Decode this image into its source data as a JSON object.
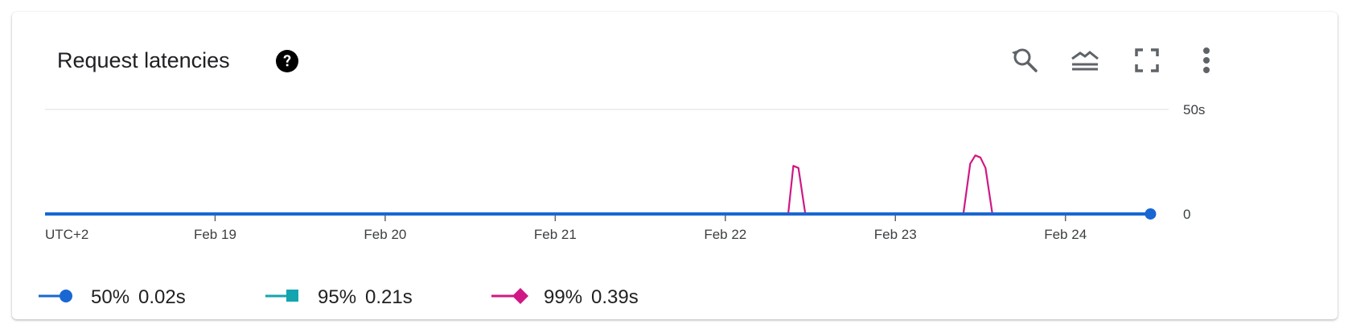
{
  "card": {
    "title": "Request latencies",
    "help_icon": "help-circle-icon",
    "toolbar": [
      {
        "name": "reset-zoom-button",
        "icon": "zoom-reset-icon"
      },
      {
        "name": "legend-toggle-button",
        "icon": "stacked-lines-icon"
      },
      {
        "name": "fullscreen-button",
        "icon": "fullscreen-icon"
      },
      {
        "name": "more-options-button",
        "icon": "more-vert-icon"
      }
    ]
  },
  "chart_data": {
    "type": "line",
    "timezone_label": "UTC+2",
    "x_ticks": [
      "Feb 19",
      "Feb 20",
      "Feb 21",
      "Feb 22",
      "Feb 23",
      "Feb 24"
    ],
    "y_ticks": [
      "50s",
      "0"
    ],
    "ylim": [
      0,
      50
    ],
    "xlim": [
      18.0,
      24.55
    ],
    "grid": true,
    "legend_position": "bottom-left",
    "series": [
      {
        "name": "50%",
        "summary": "0.02s",
        "color": "#1967d2",
        "marker": "circle",
        "points": [
          [
            18.0,
            0.02
          ],
          [
            24.5,
            0.02
          ]
        ]
      },
      {
        "name": "95%",
        "summary": "0.21s",
        "color": "#12a4af",
        "marker": "square",
        "points": [
          [
            18.0,
            0.2
          ],
          [
            24.5,
            0.2
          ]
        ]
      },
      {
        "name": "99%",
        "summary": "0.39s",
        "color": "#d01884",
        "marker": "diamond",
        "points": [
          [
            18.0,
            0.2
          ],
          [
            22.37,
            0.2
          ],
          [
            22.4,
            23
          ],
          [
            22.43,
            22
          ],
          [
            22.47,
            0.2
          ],
          [
            23.4,
            0.2
          ],
          [
            23.44,
            24
          ],
          [
            23.47,
            28
          ],
          [
            23.5,
            27
          ],
          [
            23.53,
            22
          ],
          [
            23.57,
            0.2
          ],
          [
            24.5,
            0.2
          ]
        ]
      }
    ]
  }
}
